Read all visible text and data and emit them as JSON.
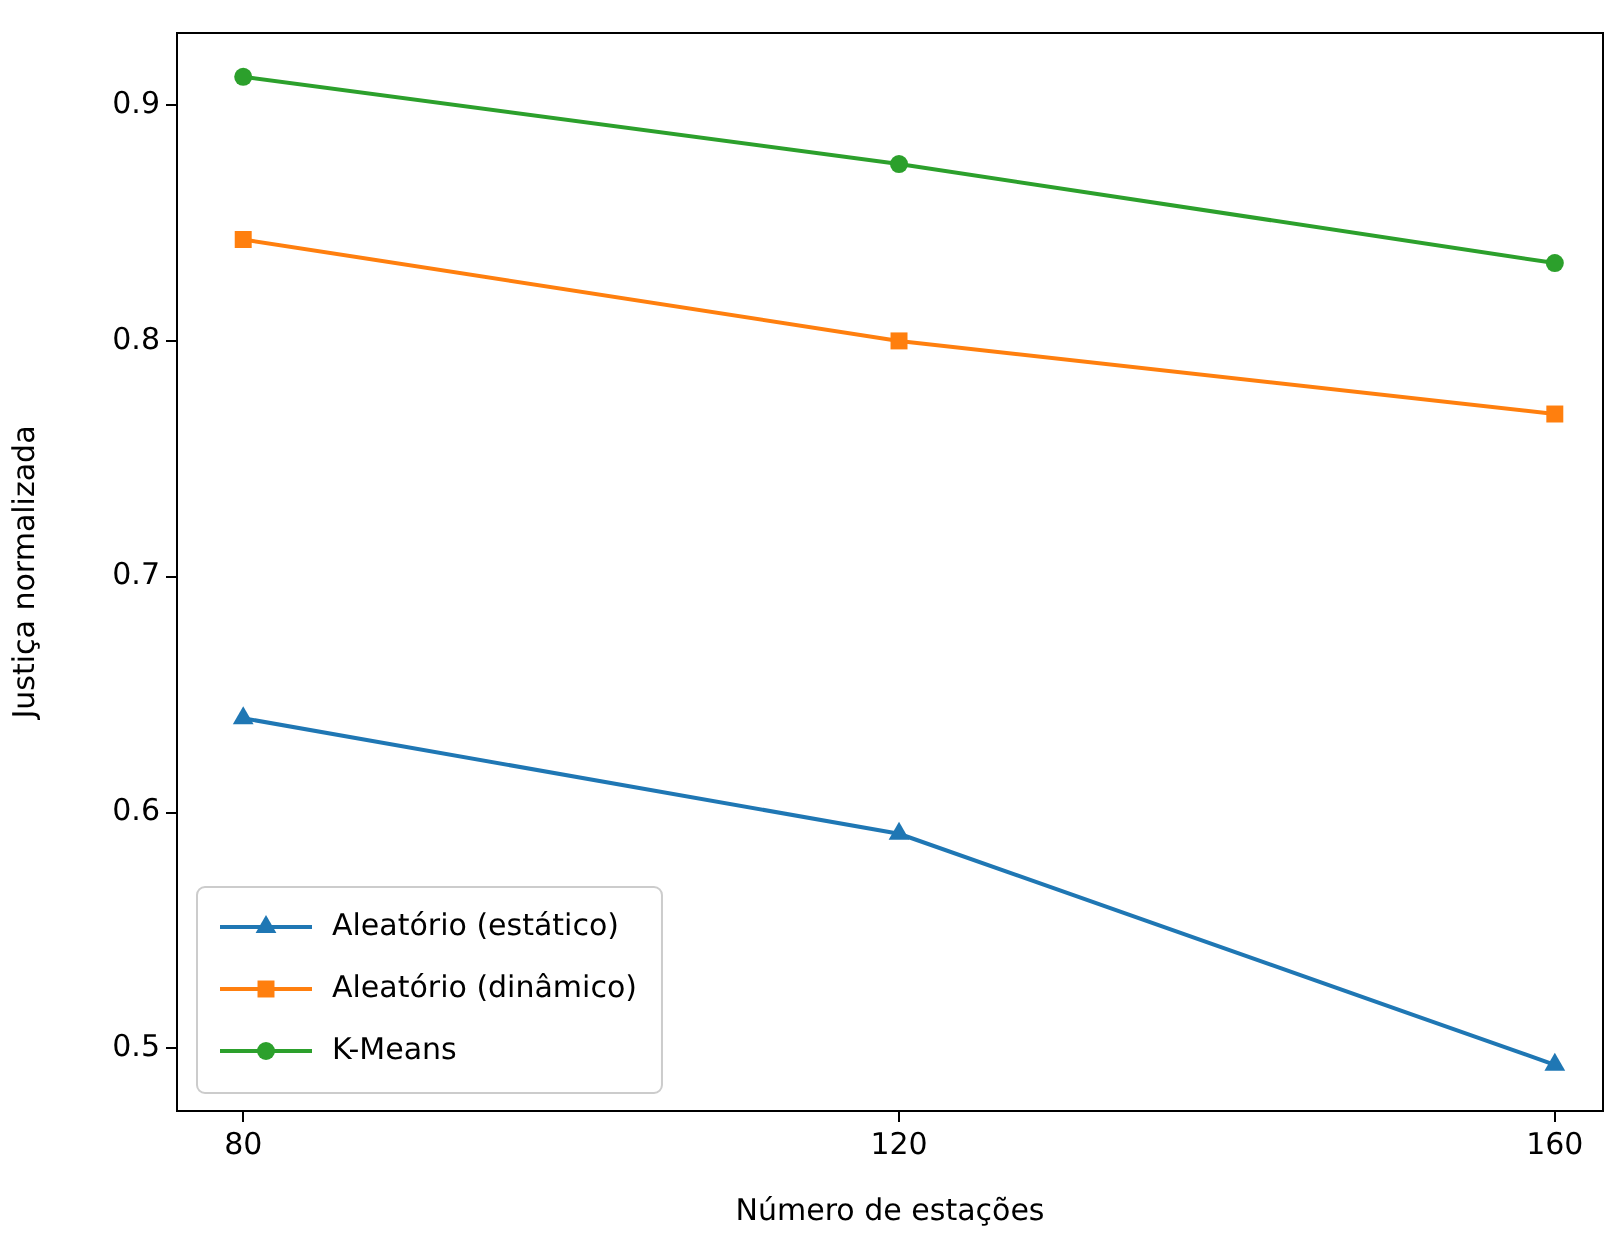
{
  "chart_data": {
    "type": "line",
    "xlabel": "Número de estações",
    "ylabel": "Justiça normalizada",
    "x": [
      80,
      120,
      160
    ],
    "series": [
      {
        "name": "Aleatório (estático)",
        "color": "#1f77b4",
        "marker": "triangle",
        "values": [
          0.64,
          0.591,
          0.493
        ]
      },
      {
        "name": "Aleatório (dinâmico)",
        "color": "#ff7f0e",
        "marker": "square",
        "values": [
          0.843,
          0.8,
          0.769
        ]
      },
      {
        "name": "K-Means",
        "color": "#2ca02c",
        "marker": "circle",
        "values": [
          0.912,
          0.875,
          0.833
        ]
      }
    ],
    "xlim": [
      75.9,
      163
    ],
    "xticks": [
      80,
      120,
      160
    ],
    "ylim": [
      0.473,
      0.931
    ],
    "yticks": [
      {
        "value": 0.5,
        "label": "0.5"
      },
      {
        "value": 0.6,
        "label": "0.6"
      },
      {
        "value": 0.7,
        "label": "0.7"
      },
      {
        "value": 0.8,
        "label": "0.8"
      },
      {
        "value": 0.9,
        "label": "0.9"
      }
    ],
    "grid": false,
    "legend": "bottom left",
    "line_style": "solid"
  }
}
